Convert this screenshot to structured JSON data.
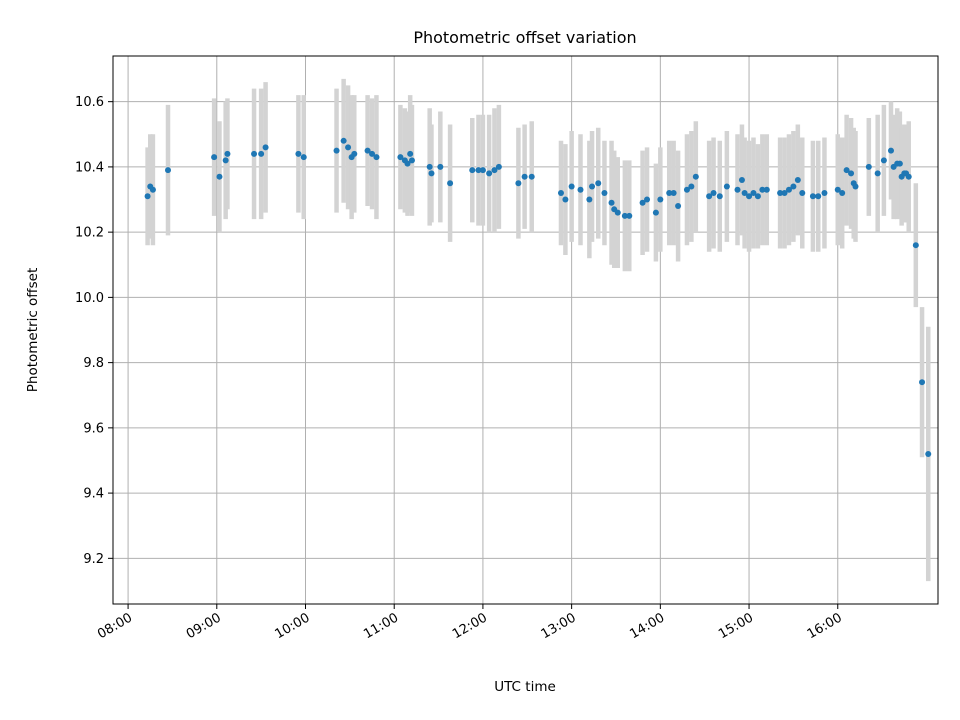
{
  "chart_data": {
    "type": "scatter",
    "title": "Photometric offset variation",
    "xlabel": "UTC time",
    "ylabel": "Photometric offset",
    "xlim_hours": [
      7.83,
      17.13
    ],
    "ylim": [
      9.06,
      10.74
    ],
    "grid": true,
    "x_ticks": [
      {
        "hour": 8,
        "label": "08:00"
      },
      {
        "hour": 9,
        "label": "09:00"
      },
      {
        "hour": 10,
        "label": "10:00"
      },
      {
        "hour": 11,
        "label": "11:00"
      },
      {
        "hour": 12,
        "label": "12:00"
      },
      {
        "hour": 13,
        "label": "13:00"
      },
      {
        "hour": 14,
        "label": "14:00"
      },
      {
        "hour": 15,
        "label": "15:00"
      },
      {
        "hour": 16,
        "label": "16:00"
      }
    ],
    "y_ticks": [
      {
        "value": 9.2,
        "label": "9.2"
      },
      {
        "value": 9.4,
        "label": "9.4"
      },
      {
        "value": 9.6,
        "label": "9.6"
      },
      {
        "value": 9.8,
        "label": "9.8"
      },
      {
        "value": 10.0,
        "label": "10.0"
      },
      {
        "value": 10.2,
        "label": "10.2"
      },
      {
        "value": 10.4,
        "label": "10.4"
      },
      {
        "value": 10.6,
        "label": "10.6"
      }
    ],
    "colors": {
      "points": "#1f77b4",
      "errorbars": "#d3d3d3",
      "grid": "#b0b0b0",
      "axes": "#000000"
    },
    "series": [
      {
        "name": "offset",
        "columns": [
          "utc_hour",
          "offset",
          "error"
        ],
        "points": [
          [
            8.22,
            10.31,
            0.15
          ],
          [
            8.25,
            10.34,
            0.16
          ],
          [
            8.28,
            10.33,
            0.17
          ],
          [
            8.45,
            10.39,
            0.2
          ],
          [
            8.97,
            10.43,
            0.18
          ],
          [
            9.03,
            10.37,
            0.17
          ],
          [
            9.1,
            10.42,
            0.18
          ],
          [
            9.12,
            10.44,
            0.17
          ],
          [
            9.42,
            10.44,
            0.2
          ],
          [
            9.5,
            10.44,
            0.2
          ],
          [
            9.55,
            10.46,
            0.2
          ],
          [
            9.92,
            10.44,
            0.18
          ],
          [
            9.98,
            10.43,
            0.19
          ],
          [
            10.35,
            10.45,
            0.19
          ],
          [
            10.43,
            10.48,
            0.19
          ],
          [
            10.48,
            10.46,
            0.19
          ],
          [
            10.52,
            10.43,
            0.19
          ],
          [
            10.55,
            10.44,
            0.18
          ],
          [
            10.7,
            10.45,
            0.17
          ],
          [
            10.75,
            10.44,
            0.17
          ],
          [
            10.8,
            10.43,
            0.19
          ],
          [
            11.07,
            10.43,
            0.16
          ],
          [
            11.12,
            10.42,
            0.16
          ],
          [
            11.15,
            10.41,
            0.16
          ],
          [
            11.18,
            10.44,
            0.18
          ],
          [
            11.2,
            10.42,
            0.17
          ],
          [
            11.4,
            10.4,
            0.18
          ],
          [
            11.42,
            10.38,
            0.15
          ],
          [
            11.52,
            10.4,
            0.17
          ],
          [
            11.63,
            10.35,
            0.18
          ],
          [
            11.88,
            10.39,
            0.16
          ],
          [
            11.95,
            10.39,
            0.17
          ],
          [
            12.0,
            10.39,
            0.17
          ],
          [
            12.07,
            10.38,
            0.18
          ],
          [
            12.13,
            10.39,
            0.19
          ],
          [
            12.18,
            10.4,
            0.19
          ],
          [
            12.4,
            10.35,
            0.17
          ],
          [
            12.47,
            10.37,
            0.16
          ],
          [
            12.55,
            10.37,
            0.17
          ],
          [
            12.88,
            10.32,
            0.16
          ],
          [
            12.93,
            10.3,
            0.17
          ],
          [
            13.0,
            10.34,
            0.17
          ],
          [
            13.1,
            10.33,
            0.17
          ],
          [
            13.2,
            10.3,
            0.18
          ],
          [
            13.23,
            10.34,
            0.17
          ],
          [
            13.3,
            10.35,
            0.17
          ],
          [
            13.37,
            10.32,
            0.16
          ],
          [
            13.45,
            10.29,
            0.19
          ],
          [
            13.48,
            10.27,
            0.18
          ],
          [
            13.52,
            10.26,
            0.17
          ],
          [
            13.6,
            10.25,
            0.17
          ],
          [
            13.65,
            10.25,
            0.17
          ],
          [
            13.8,
            10.29,
            0.16
          ],
          [
            13.85,
            10.3,
            0.16
          ],
          [
            13.95,
            10.26,
            0.15
          ],
          [
            14.0,
            10.3,
            0.16
          ],
          [
            14.1,
            10.32,
            0.16
          ],
          [
            14.15,
            10.32,
            0.16
          ],
          [
            14.2,
            10.28,
            0.17
          ],
          [
            14.3,
            10.33,
            0.17
          ],
          [
            14.35,
            10.34,
            0.17
          ],
          [
            14.4,
            10.37,
            0.17
          ],
          [
            14.55,
            10.31,
            0.17
          ],
          [
            14.6,
            10.32,
            0.17
          ],
          [
            14.67,
            10.31,
            0.17
          ],
          [
            14.75,
            10.34,
            0.17
          ],
          [
            14.87,
            10.33,
            0.17
          ],
          [
            14.92,
            10.36,
            0.17
          ],
          [
            14.95,
            10.32,
            0.17
          ],
          [
            15.0,
            10.31,
            0.17
          ],
          [
            15.05,
            10.32,
            0.17
          ],
          [
            15.1,
            10.31,
            0.16
          ],
          [
            15.15,
            10.33,
            0.17
          ],
          [
            15.2,
            10.33,
            0.17
          ],
          [
            15.35,
            10.32,
            0.17
          ],
          [
            15.4,
            10.32,
            0.17
          ],
          [
            15.45,
            10.33,
            0.17
          ],
          [
            15.5,
            10.34,
            0.17
          ],
          [
            15.55,
            10.36,
            0.17
          ],
          [
            15.6,
            10.32,
            0.17
          ],
          [
            15.72,
            10.31,
            0.17
          ],
          [
            15.78,
            10.31,
            0.17
          ],
          [
            15.85,
            10.32,
            0.17
          ],
          [
            16.0,
            10.33,
            0.17
          ],
          [
            16.05,
            10.32,
            0.17
          ],
          [
            16.1,
            10.39,
            0.17
          ],
          [
            16.15,
            10.38,
            0.17
          ],
          [
            16.18,
            10.35,
            0.17
          ],
          [
            16.2,
            10.34,
            0.17
          ],
          [
            16.35,
            10.4,
            0.15
          ],
          [
            16.45,
            10.38,
            0.18
          ],
          [
            16.52,
            10.42,
            0.17
          ],
          [
            16.6,
            10.45,
            0.15
          ],
          [
            16.63,
            10.4,
            0.16
          ],
          [
            16.67,
            10.41,
            0.17
          ],
          [
            16.7,
            10.41,
            0.16
          ],
          [
            16.72,
            10.37,
            0.15
          ],
          [
            16.75,
            10.38,
            0.15
          ],
          [
            16.77,
            10.38,
            0.15
          ],
          [
            16.8,
            10.37,
            0.17
          ],
          [
            16.88,
            10.16,
            0.19
          ],
          [
            16.95,
            9.74,
            0.23
          ],
          [
            17.02,
            9.52,
            0.39
          ]
        ]
      }
    ]
  }
}
